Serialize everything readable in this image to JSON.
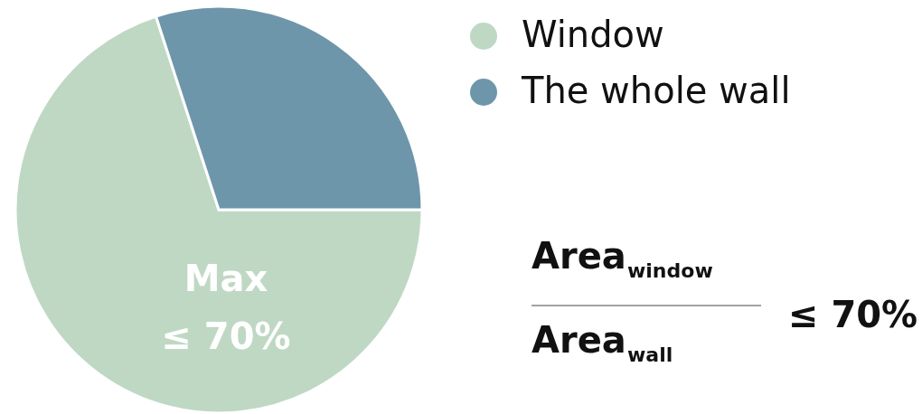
{
  "chart_data": {
    "type": "pie",
    "categories": [
      "Window",
      "The whole wall"
    ],
    "values": [
      70,
      30
    ],
    "colors": [
      "#bfd8c4",
      "#6e96aa"
    ],
    "legend": "top right",
    "annotations": [
      "Max\n≤ 70%",
      "Area$_{window}$",
      "Area$_{wall}$",
      "≤ 70%"
    ]
  }
}
